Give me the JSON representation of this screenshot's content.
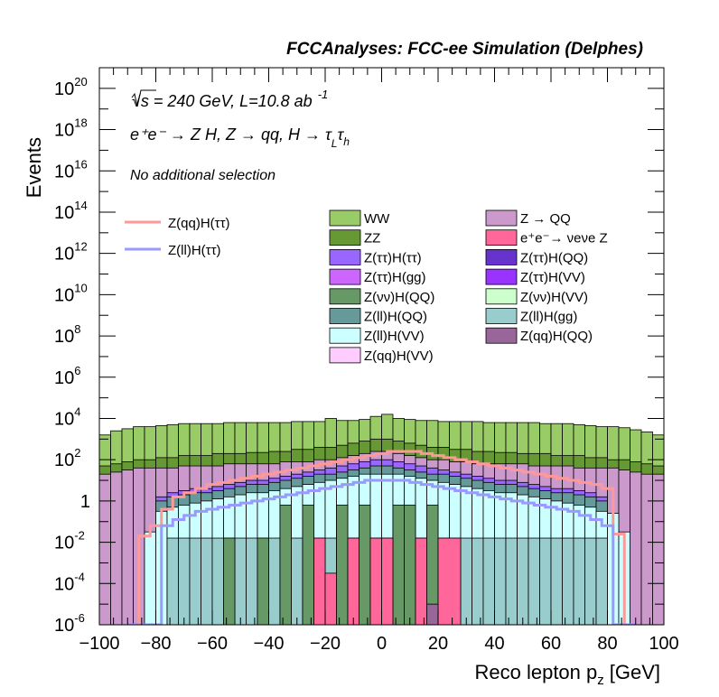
{
  "chart_data": {
    "type": "histogram",
    "title": "FCCAnalyses: FCC-ee Simulation (Delphes)",
    "annotations": {
      "energy_lumi": "√s = 240 GeV, L=10.8 ab",
      "energy_lumi_sup": "-1",
      "process": "e⁺e⁻ → Z H, Z → qq, H → τ",
      "process_sub_L": "L",
      "process_tau2": "τ",
      "process_sub_h": "h",
      "selection": "No additional selection"
    },
    "xlabel": "Reco lepton p",
    "xlabel_sub": "z",
    "xlabel_unit": "[GeV]",
    "ylabel": "Events",
    "xlim": [
      -100,
      100
    ],
    "ylim_log10": [
      -6,
      21
    ],
    "log_y": true,
    "bin_width": 4,
    "xticks": [
      -100,
      -80,
      -60,
      -40,
      -20,
      0,
      20,
      40,
      60,
      80,
      100
    ],
    "ytick_labels": [
      {
        "exp": -6,
        "base": "10",
        "sup": "-6"
      },
      {
        "exp": -4,
        "base": "10",
        "sup": "-4"
      },
      {
        "exp": -2,
        "base": "10",
        "sup": "-2"
      },
      {
        "exp": 0,
        "base": "1",
        "sup": ""
      },
      {
        "exp": 2,
        "base": "10",
        "sup": "2"
      },
      {
        "exp": 4,
        "base": "10",
        "sup": "4"
      },
      {
        "exp": 6,
        "base": "10",
        "sup": "6"
      },
      {
        "exp": 8,
        "base": "10",
        "sup": "8"
      },
      {
        "exp": 10,
        "base": "10",
        "sup": "10"
      },
      {
        "exp": 12,
        "base": "10",
        "sup": "12"
      },
      {
        "exp": 14,
        "base": "10",
        "sup": "14"
      },
      {
        "exp": 16,
        "base": "10",
        "sup": "16"
      },
      {
        "exp": 18,
        "base": "10",
        "sup": "18"
      },
      {
        "exp": 20,
        "base": "10",
        "sup": "20"
      }
    ],
    "stack_log10": [
      {
        "name": "WW",
        "color": "#99cc66",
        "values": [
          3.2,
          3.4,
          3.5,
          3.6,
          3.6,
          3.65,
          3.7,
          3.75,
          3.75,
          3.75,
          3.75,
          3.8,
          3.8,
          3.8,
          3.8,
          3.8,
          3.8,
          3.85,
          3.85,
          3.85,
          4.0,
          3.9,
          3.9,
          3.95,
          4.1,
          4.2,
          4.0,
          3.95,
          3.9,
          3.9,
          3.85,
          3.85,
          3.85,
          3.85,
          3.8,
          3.8,
          3.8,
          3.8,
          3.8,
          3.75,
          3.75,
          3.75,
          3.7,
          3.65,
          3.6,
          3.6,
          3.55,
          3.45,
          3.35,
          3.2
        ]
      },
      {
        "name": "ZZ",
        "color": "#669933",
        "values": [
          1.7,
          1.8,
          1.9,
          2.0,
          2.0,
          2.1,
          2.1,
          2.2,
          2.2,
          2.2,
          2.3,
          2.3,
          2.3,
          2.35,
          2.35,
          2.4,
          2.4,
          2.5,
          2.5,
          2.6,
          2.6,
          2.7,
          2.8,
          2.9,
          3.0,
          3.0,
          2.9,
          2.8,
          2.7,
          2.6,
          2.6,
          2.5,
          2.5,
          2.4,
          2.4,
          2.35,
          2.35,
          2.3,
          2.3,
          2.3,
          2.2,
          2.2,
          2.2,
          2.1,
          2.1,
          2.0,
          2.0,
          1.9,
          1.8,
          1.7
        ]
      },
      {
        "name": "Z → QQ",
        "color": "#cc99cc",
        "values": [
          -6,
          -6,
          -6,
          -6,
          -6,
          -6,
          -6,
          -6,
          -6,
          -6,
          -6,
          -6,
          -6,
          -6,
          -6,
          -6,
          -6,
          -6,
          -6,
          -6,
          -6,
          -6,
          -6,
          -6,
          -6,
          -6,
          -6,
          -6,
          -6,
          -6,
          -6,
          -6,
          -6,
          -6,
          -6,
          -6,
          -6,
          -6,
          -6,
          -6,
          -6,
          -6,
          -6,
          -6,
          -6,
          -6,
          -6,
          -6,
          -6,
          -6
        ]
      },
      {
        "name": "Z(νν)H(QQ)",
        "color": "#669966",
        "values": [
          -9,
          -9,
          -9,
          -9,
          -9,
          -9,
          -9,
          -9,
          -9,
          -9,
          -9,
          -9,
          -9,
          -9,
          -9,
          -9,
          -9,
          -9,
          -9,
          -9,
          -9,
          -9,
          -9,
          -9,
          -9,
          -9,
          -9,
          -9,
          -9,
          -9,
          -9,
          -9,
          -9,
          -9,
          -9,
          -9,
          -9,
          -9,
          -9,
          -9,
          -9,
          -9,
          -9,
          -9,
          -9,
          -9,
          -9,
          -9,
          -9,
          -9
        ]
      }
    ],
    "stacked_totals": {
      "WW": [
        3.2,
        3.4,
        3.5,
        3.6,
        3.6,
        3.65,
        3.7,
        3.75,
        3.75,
        3.75,
        3.75,
        3.8,
        3.8,
        3.8,
        3.8,
        3.8,
        3.8,
        3.85,
        3.85,
        3.85,
        4.0,
        3.9,
        3.9,
        3.95,
        4.1,
        4.2,
        4.0,
        3.95,
        3.9,
        3.9,
        3.85,
        3.85,
        3.85,
        3.85,
        3.8,
        3.8,
        3.8,
        3.8,
        3.8,
        3.75,
        3.75,
        3.75,
        3.7,
        3.65,
        3.6,
        3.6,
        3.55,
        3.45,
        3.35,
        3.2
      ],
      "ZZ": [
        1.7,
        1.8,
        1.9,
        2.0,
        2.0,
        2.1,
        2.1,
        2.2,
        2.2,
        2.2,
        2.3,
        2.3,
        2.3,
        2.35,
        2.35,
        2.4,
        2.4,
        2.5,
        2.5,
        2.6,
        2.6,
        2.7,
        2.8,
        2.9,
        3.0,
        3.0,
        2.9,
        2.8,
        2.7,
        2.6,
        2.6,
        2.5,
        2.5,
        2.4,
        2.4,
        2.35,
        2.35,
        2.3,
        2.3,
        2.3,
        2.2,
        2.2,
        2.2,
        2.1,
        2.1,
        2.0,
        2.0,
        1.9,
        1.8,
        1.7
      ],
      "Z → QQ": [
        1.3,
        1.4,
        1.5,
        1.6,
        1.6,
        1.6,
        1.6,
        1.7,
        1.7,
        1.7,
        1.7,
        1.8,
        1.8,
        1.8,
        1.8,
        1.8,
        1.9,
        1.9,
        1.9,
        2.0,
        2.0,
        2.1,
        2.2,
        2.3,
        2.4,
        2.4,
        2.3,
        2.2,
        2.1,
        2.0,
        2.0,
        1.9,
        1.9,
        1.8,
        1.8,
        1.8,
        1.8,
        1.8,
        1.7,
        1.7,
        1.7,
        1.7,
        1.6,
        1.6,
        1.6,
        1.6,
        1.5,
        1.4,
        1.3,
        1.3
      ],
      "Z(ττ)H(ττ)": [
        -6,
        -6,
        -6,
        -6,
        -6,
        0.2,
        0.4,
        0.5,
        0.6,
        0.6,
        0.7,
        0.8,
        0.9,
        1.0,
        1.0,
        1.1,
        1.2,
        1.3,
        1.4,
        1.5,
        1.6,
        1.7,
        1.8,
        1.9,
        2.0,
        2.0,
        1.9,
        1.8,
        1.7,
        1.6,
        1.5,
        1.4,
        1.3,
        1.2,
        1.1,
        1.0,
        1.0,
        0.9,
        0.8,
        0.7,
        0.6,
        0.6,
        0.5,
        0.4,
        0.2,
        -6,
        -6,
        -6,
        -6,
        -6
      ],
      "Z(ll)H(QQ)": [
        -6,
        -6,
        -6,
        -6,
        -6,
        0.0,
        0.2,
        0.3,
        0.4,
        0.4,
        0.5,
        0.6,
        0.7,
        0.8,
        0.8,
        0.9,
        1.0,
        1.1,
        1.2,
        1.3,
        1.3,
        1.4,
        1.5,
        1.6,
        1.7,
        1.7,
        1.6,
        1.5,
        1.4,
        1.3,
        1.3,
        1.2,
        1.1,
        1.0,
        0.9,
        0.8,
        0.8,
        0.7,
        0.6,
        0.5,
        0.4,
        0.4,
        0.3,
        0.2,
        0.0,
        -6,
        -6,
        -6,
        -6,
        -6
      ],
      "Z(ll)H(VV)": [
        -6,
        -6,
        -6,
        -6,
        -1.5,
        -0.5,
        -0.3,
        -0.2,
        -0.1,
        0.0,
        0.1,
        0.2,
        0.3,
        0.4,
        0.4,
        0.5,
        0.6,
        0.7,
        0.8,
        0.9,
        1.0,
        1.1,
        1.2,
        1.3,
        1.3,
        1.3,
        1.3,
        1.2,
        1.1,
        1.0,
        0.9,
        0.8,
        0.7,
        0.6,
        0.5,
        0.4,
        0.4,
        0.3,
        0.2,
        0.1,
        0.0,
        -0.1,
        -0.2,
        -0.3,
        -0.5,
        -0.6,
        -1.5,
        -6,
        -6,
        -6
      ],
      "Z(ll)H(gg)": [
        -6,
        -6,
        -6,
        -6,
        -6,
        -6,
        -1.8,
        -1.8,
        -1.8,
        -1.8,
        -1.8,
        -1.8,
        -1.8,
        -1.8,
        -1.8,
        -1.8,
        -1.8,
        -1.8,
        -1.8,
        -1.8,
        -1.8,
        -1.8,
        -1.8,
        -1.8,
        -1.8,
        -1.8,
        -1.8,
        -1.8,
        -1.8,
        -1.8,
        -1.8,
        -1.8,
        -1.8,
        -1.8,
        -1.8,
        -1.8,
        -1.8,
        -1.8,
        -1.8,
        -1.8,
        -1.8,
        -1.8,
        -1.8,
        -1.8,
        -1.8,
        -6,
        -6,
        -6,
        -6,
        -6
      ]
    },
    "isolated_bars_log10": [
      {
        "name": "Z(νν)H(QQ)",
        "color": "#669966",
        "bins": [
          {
            "x0": -56,
            "x1": -52,
            "y": -1.8
          },
          {
            "x0": -44,
            "x1": -40,
            "y": -1.8
          },
          {
            "x0": -36,
            "x1": -32,
            "y": -0.2
          },
          {
            "x0": -28,
            "x1": -24,
            "y": -0.2
          },
          {
            "x0": -16,
            "x1": -12,
            "y": -0.2
          },
          {
            "x0": -8,
            "x1": -4,
            "y": -0.2
          },
          {
            "x0": 4,
            "x1": 8,
            "y": -0.2
          },
          {
            "x0": 8,
            "x1": 12,
            "y": -0.2
          },
          {
            "x0": 16,
            "x1": 20,
            "y": -0.2
          }
        ]
      },
      {
        "name": "e⁺e⁻ → νeνe Z",
        "color": "#ff6699",
        "bins": [
          {
            "x0": -24,
            "x1": -20,
            "y": -1.8
          },
          {
            "x0": -20,
            "x1": -16,
            "y": -3.5
          },
          {
            "x0": -12,
            "x1": -8,
            "y": -1.8
          },
          {
            "x0": -4,
            "x1": 0,
            "y": -1.8
          },
          {
            "x0": 0,
            "x1": 4,
            "y": -1.8
          },
          {
            "x0": 12,
            "x1": 16,
            "y": -1.8
          },
          {
            "x0": 20,
            "x1": 28,
            "y": -1.8
          }
        ]
      },
      {
        "name": "Z(qq)H(QQ)",
        "color": "#996699",
        "bins": [
          {
            "x0": 16,
            "x1": 20,
            "y": -5.0
          }
        ]
      }
    ],
    "overlays_log10": [
      {
        "name": "Z(qq)H(ττ)",
        "color": "#ff9999",
        "x0": -90,
        "x1": 84,
        "values": [
          -6,
          -1.7,
          -1.2,
          -0.4,
          0.2,
          0.4,
          0.6,
          0.8,
          0.9,
          1.0,
          1.1,
          1.2,
          1.3,
          1.4,
          1.5,
          1.6,
          1.7,
          1.8,
          1.9,
          2.0,
          2.1,
          2.2,
          2.3,
          2.4,
          2.4,
          2.4,
          2.3,
          2.2,
          2.1,
          2.0,
          1.9,
          1.8,
          1.7,
          1.6,
          1.5,
          1.4,
          1.3,
          1.2,
          1.1,
          1.0,
          0.9,
          0.8,
          0.6,
          -1.6,
          -6
        ]
      },
      {
        "name": "Z(ll)H(ττ)",
        "color": "#9999ff",
        "x0": -90,
        "x1": 84,
        "values": [
          -6,
          -6,
          -6,
          -1.2,
          -0.9,
          -0.7,
          -0.5,
          -0.4,
          -0.3,
          -0.2,
          -0.1,
          0.0,
          0.1,
          0.2,
          0.3,
          0.4,
          0.5,
          0.6,
          0.7,
          0.8,
          0.9,
          1.0,
          1.0,
          1.0,
          1.0,
          0.9,
          0.8,
          0.7,
          0.6,
          0.5,
          0.4,
          0.3,
          0.2,
          0.1,
          0.0,
          -0.1,
          -0.2,
          -0.3,
          -0.4,
          -0.5,
          -0.7,
          -0.9,
          -1.2,
          -6,
          -6
        ]
      }
    ],
    "legend": {
      "lines": [
        {
          "name": "Z(qq)H(ττ)",
          "color": "#ff9999"
        },
        {
          "name": "Z(ll)H(ττ)",
          "color": "#9999ff"
        }
      ],
      "boxes": [
        {
          "name": "WW",
          "color": "#99cc66"
        },
        {
          "name": "Z → QQ",
          "color": "#cc99cc"
        },
        {
          "name": "ZZ",
          "color": "#669933"
        },
        {
          "name": "e⁺e⁻→ νeνe Z",
          "color": "#ff6699"
        },
        {
          "name": "Z(ττ)H(ττ)",
          "color": "#9966ff"
        },
        {
          "name": "Z(ττ)H(QQ)",
          "color": "#6633cc"
        },
        {
          "name": "Z(ττ)H(gg)",
          "color": "#cc66ff"
        },
        {
          "name": "Z(ττ)H(VV)",
          "color": "#9933ff"
        },
        {
          "name": "Z(νν)H(QQ)",
          "color": "#669966"
        },
        {
          "name": "Z(νν)H(VV)",
          "color": "#ccffcc"
        },
        {
          "name": "Z(ll)H(QQ)",
          "color": "#669999"
        },
        {
          "name": "Z(ll)H(gg)",
          "color": "#99cccc"
        },
        {
          "name": "Z(ll)H(VV)",
          "color": "#ccffff"
        },
        {
          "name": "Z(qq)H(QQ)",
          "color": "#996699"
        },
        {
          "name": "Z(qq)H(VV)",
          "color": "#ffccff"
        }
      ]
    }
  }
}
